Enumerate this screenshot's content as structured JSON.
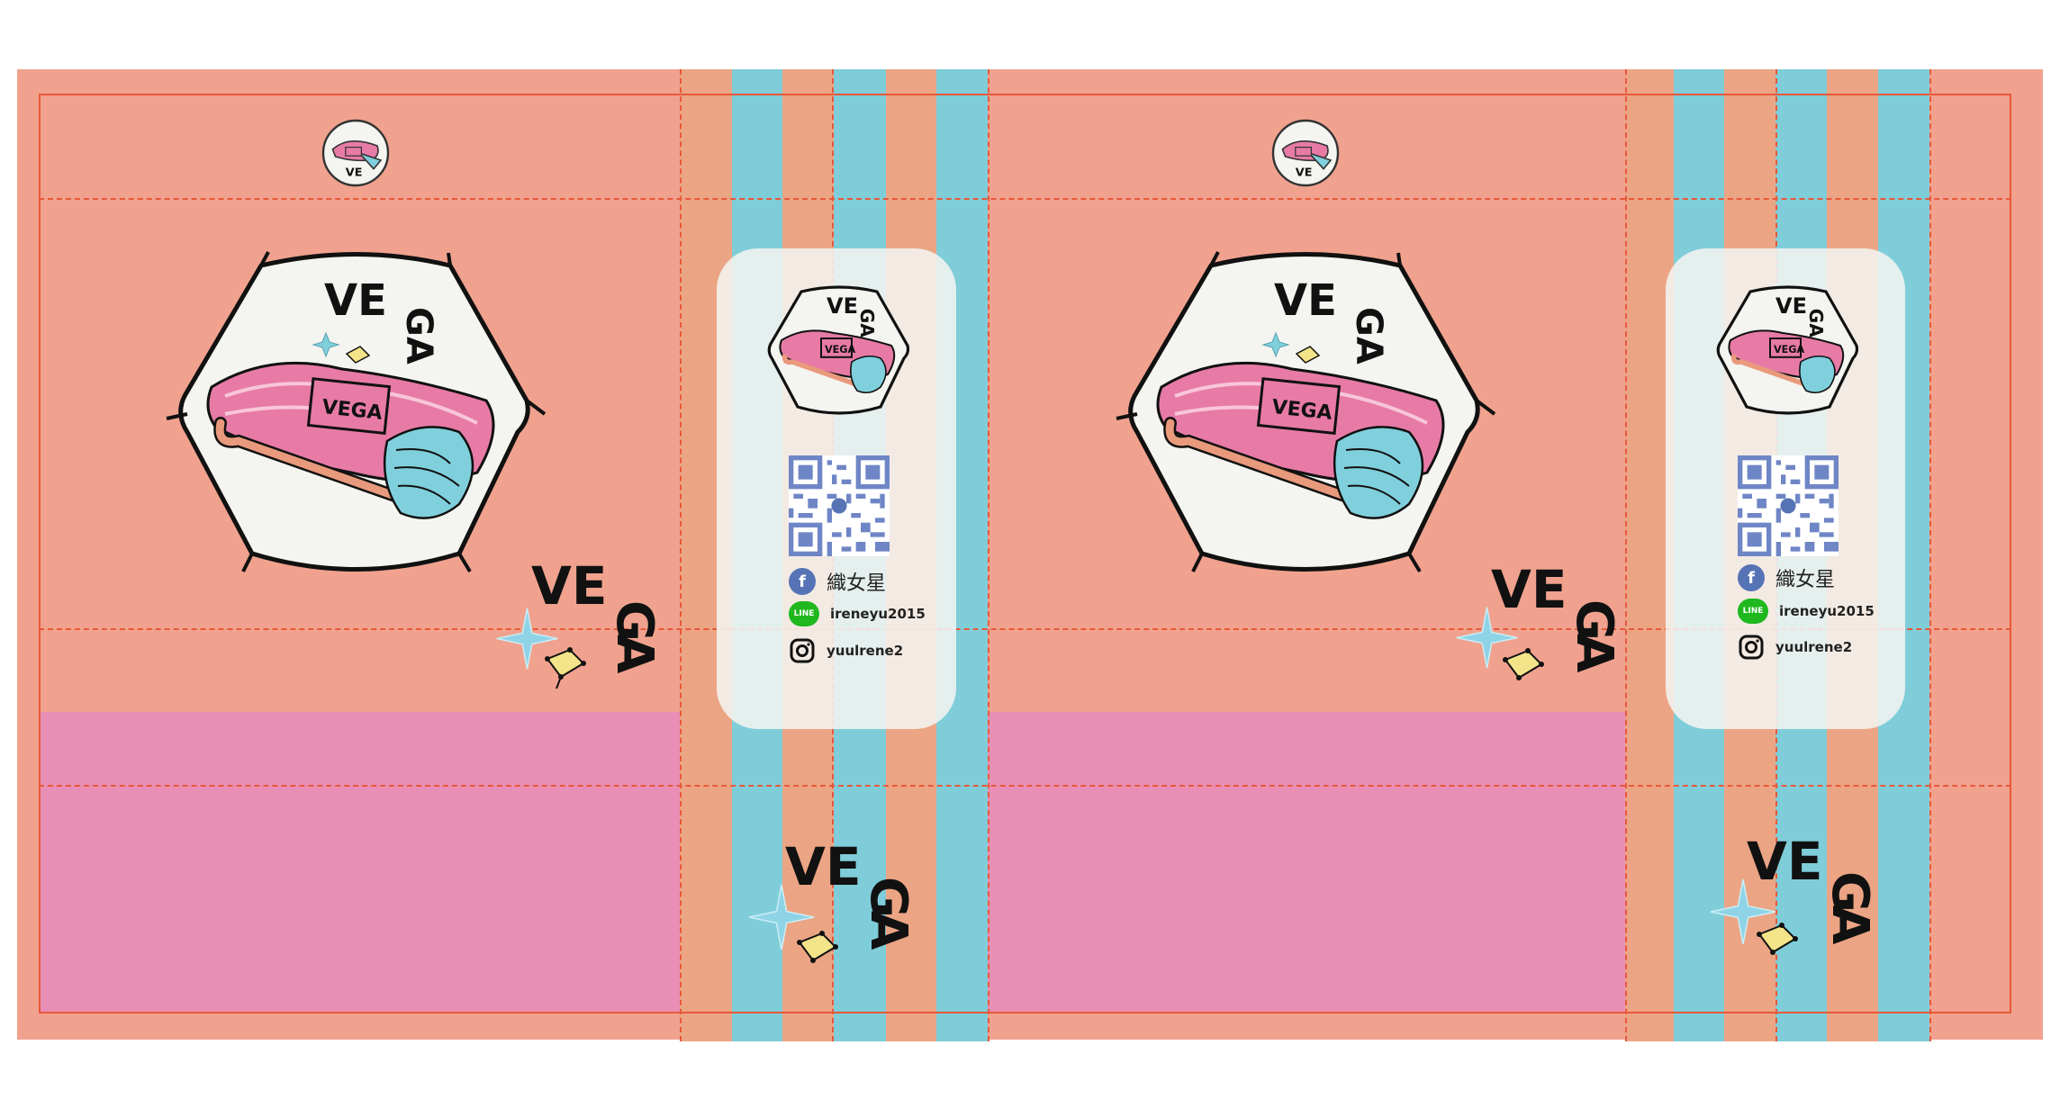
{
  "colors": {
    "salmon": "#f0a28e",
    "pink": "#e98fb5",
    "orange": "#eca584",
    "blue": "#7fcdd9",
    "trim": "#e8583a",
    "card": "#f4f4f0",
    "yarn_pink": "#e77ba6",
    "yarn_blue": "#7fd0dc",
    "hook": "#e99a7c",
    "qr_blue": "#6f86c6",
    "line_green": "#1fb81f",
    "fb_blue": "#5673b5"
  },
  "brand": {
    "logo_top": "VE",
    "logo_bottom": "GA",
    "badge_text": "VEGA"
  },
  "contacts": {
    "facebook_name": "織女星",
    "line_id": "ireneyu2015",
    "instagram_id": "yuulrene2",
    "line_icon_text": "LINE",
    "facebook_icon_text": "f"
  },
  "icons": [
    "facebook-icon",
    "line-icon",
    "instagram-icon",
    "sparkle-icon",
    "constellation-icon",
    "qr-code"
  ]
}
